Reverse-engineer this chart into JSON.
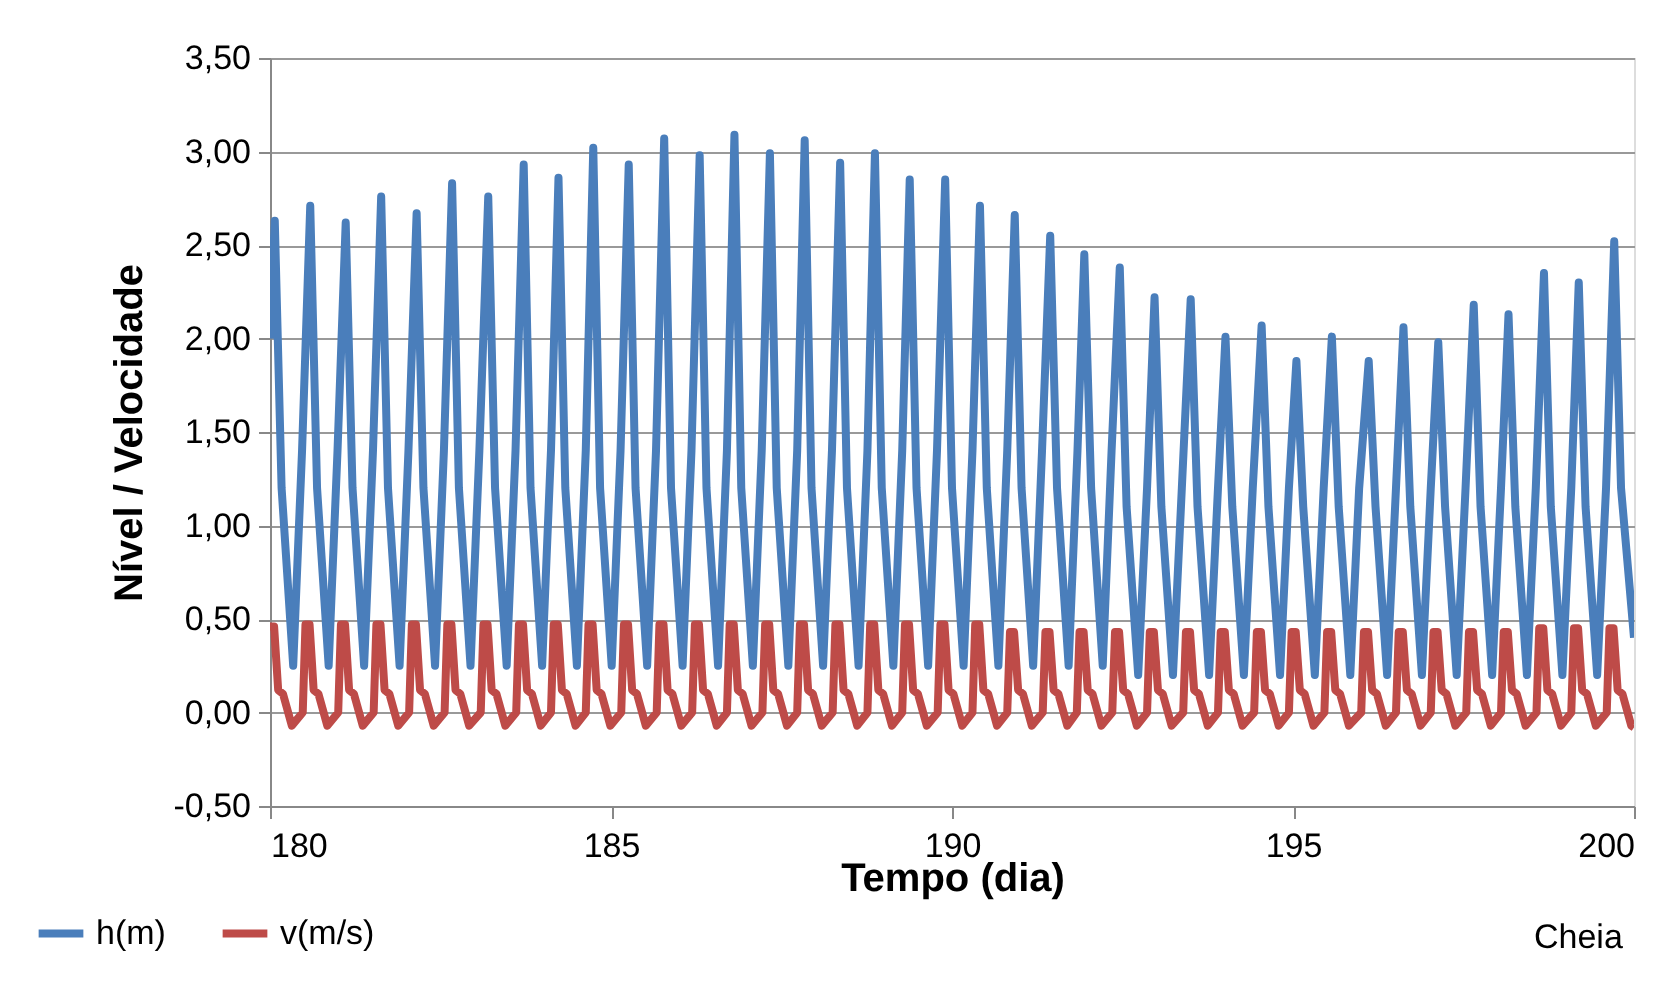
{
  "chart_data": {
    "type": "line",
    "xlabel": "Tempo (dia)",
    "ylabel": "Nível / Velocidade",
    "xlim": [
      180,
      200
    ],
    "xticks": [
      180,
      185,
      190,
      195,
      200
    ],
    "ylim": [
      -0.5,
      3.5
    ],
    "yticks": [
      {
        "value": -0.5,
        "label": "-0,50"
      },
      {
        "value": 0,
        "label": "0,00"
      },
      {
        "value": 0.5,
        "label": "0,50"
      },
      {
        "value": 1,
        "label": "1,00"
      },
      {
        "value": 1.5,
        "label": "1,50"
      },
      {
        "value": 2,
        "label": "2,00"
      },
      {
        "value": 2.5,
        "label": "2,50"
      },
      {
        "value": 3,
        "label": "3,00"
      },
      {
        "value": 3.5,
        "label": "3,50"
      }
    ],
    "grid": "y",
    "legend": "bottom",
    "line_style": "solid",
    "annotations": [
      "Cheia"
    ],
    "series": [
      {
        "name": "h(m)",
        "color": "#4a7ebb",
        "x": [
          180.0,
          180.07,
          180.17,
          180.34,
          180.47,
          180.59,
          180.69,
          180.86,
          180.99,
          181.11,
          181.21,
          181.38,
          181.51,
          181.63,
          181.73,
          181.9,
          182.03,
          182.15,
          182.25,
          182.42,
          182.55,
          182.67,
          182.77,
          182.94,
          183.07,
          183.2,
          183.3,
          183.47,
          183.6,
          183.72,
          183.82,
          183.99,
          184.12,
          184.23,
          184.33,
          184.5,
          184.63,
          184.74,
          184.84,
          185.01,
          185.14,
          185.26,
          185.36,
          185.53,
          185.66,
          185.78,
          185.88,
          186.05,
          186.18,
          186.3,
          186.4,
          186.57,
          186.7,
          186.81,
          186.91,
          187.08,
          187.21,
          187.33,
          187.43,
          187.6,
          187.73,
          187.84,
          187.94,
          188.11,
          188.24,
          188.36,
          188.46,
          188.63,
          188.76,
          188.87,
          188.97,
          189.14,
          189.27,
          189.38,
          189.48,
          189.65,
          189.78,
          189.9,
          190.0,
          190.17,
          190.3,
          190.41,
          190.51,
          190.68,
          190.81,
          190.92,
          191.02,
          191.19,
          191.32,
          191.44,
          191.54,
          191.71,
          191.84,
          191.94,
          192.04,
          192.21,
          192.34,
          192.46,
          192.56,
          192.73,
          192.86,
          192.97,
          193.07,
          193.24,
          193.37,
          193.5,
          193.6,
          193.77,
          193.9,
          194.01,
          194.11,
          194.28,
          194.41,
          194.54,
          194.64,
          194.81,
          194.94,
          195.05,
          195.15,
          195.32,
          195.45,
          195.57,
          195.67,
          195.84,
          195.97,
          196.11,
          196.21,
          196.38,
          196.51,
          196.62,
          196.72,
          196.89,
          197.02,
          197.13,
          197.23,
          197.4,
          197.53,
          197.65,
          197.75,
          197.92,
          198.05,
          198.16,
          198.26,
          198.43,
          198.56,
          198.68,
          198.78,
          198.95,
          199.08,
          199.19,
          199.29,
          199.46,
          199.59,
          199.71,
          199.81,
          200.0
        ],
        "values": [
          2.0,
          2.63,
          1.2,
          0.25,
          1.4,
          2.71,
          1.2,
          0.25,
          1.4,
          2.62,
          1.2,
          0.25,
          1.4,
          2.76,
          1.2,
          0.25,
          1.4,
          2.67,
          1.2,
          0.25,
          1.4,
          2.83,
          1.2,
          0.25,
          1.4,
          2.76,
          1.2,
          0.25,
          1.4,
          2.93,
          1.2,
          0.25,
          1.4,
          2.86,
          1.2,
          0.25,
          1.4,
          3.02,
          1.2,
          0.25,
          1.4,
          2.93,
          1.2,
          0.25,
          1.4,
          3.07,
          1.2,
          0.25,
          1.4,
          2.98,
          1.2,
          0.25,
          1.4,
          3.09,
          1.2,
          0.25,
          1.4,
          2.99,
          1.2,
          0.25,
          1.4,
          3.06,
          1.2,
          0.25,
          1.4,
          2.94,
          1.2,
          0.25,
          1.4,
          2.99,
          1.2,
          0.25,
          1.4,
          2.85,
          1.2,
          0.25,
          1.4,
          2.85,
          1.2,
          0.25,
          1.4,
          2.71,
          1.2,
          0.25,
          1.4,
          2.66,
          1.2,
          0.25,
          1.4,
          2.55,
          1.2,
          0.25,
          1.4,
          2.45,
          1.2,
          0.25,
          1.4,
          2.38,
          1.1,
          0.2,
          1.2,
          2.22,
          1.1,
          0.2,
          1.2,
          2.21,
          1.1,
          0.2,
          1.2,
          2.01,
          1.1,
          0.2,
          1.2,
          2.07,
          1.1,
          0.2,
          1.2,
          1.88,
          1.1,
          0.2,
          1.2,
          2.01,
          1.1,
          0.2,
          1.2,
          1.88,
          1.1,
          0.2,
          1.2,
          2.06,
          1.1,
          0.2,
          1.2,
          1.98,
          1.1,
          0.2,
          1.2,
          2.18,
          1.1,
          0.2,
          1.2,
          2.13,
          1.1,
          0.2,
          1.2,
          2.35,
          1.1,
          0.2,
          1.2,
          2.3,
          1.1,
          0.2,
          1.2,
          2.52,
          1.2,
          0.4
        ]
      },
      {
        "name": "v(m/s)",
        "color": "#be4b48",
        "x": [
          180.0,
          180.06,
          180.12,
          180.19,
          180.32,
          180.48,
          180.52,
          180.58,
          180.64,
          180.71,
          180.84,
          181.0,
          181.04,
          181.1,
          181.16,
          181.23,
          181.36,
          181.52,
          181.56,
          181.62,
          181.68,
          181.75,
          181.88,
          182.04,
          182.08,
          182.14,
          182.2,
          182.27,
          182.4,
          182.56,
          182.6,
          182.66,
          182.72,
          182.79,
          182.92,
          183.09,
          183.13,
          183.19,
          183.25,
          183.32,
          183.45,
          183.61,
          183.65,
          183.71,
          183.77,
          183.84,
          183.97,
          184.12,
          184.16,
          184.22,
          184.28,
          184.35,
          184.48,
          184.63,
          184.67,
          184.73,
          184.79,
          184.86,
          184.99,
          185.15,
          185.19,
          185.25,
          185.31,
          185.38,
          185.51,
          185.67,
          185.71,
          185.77,
          185.83,
          185.9,
          186.03,
          186.19,
          186.23,
          186.29,
          186.35,
          186.42,
          186.55,
          186.7,
          186.74,
          186.8,
          186.86,
          186.93,
          187.06,
          187.22,
          187.26,
          187.32,
          187.38,
          187.45,
          187.58,
          187.73,
          187.77,
          187.83,
          187.89,
          187.96,
          188.09,
          188.25,
          188.29,
          188.35,
          188.41,
          188.48,
          188.61,
          188.76,
          188.8,
          188.86,
          188.92,
          188.99,
          189.12,
          189.27,
          189.31,
          189.37,
          189.43,
          189.5,
          189.63,
          189.79,
          189.83,
          189.89,
          189.95,
          190.02,
          190.15,
          190.3,
          190.34,
          190.4,
          190.46,
          190.53,
          190.66,
          190.81,
          190.85,
          190.91,
          190.97,
          191.04,
          191.17,
          191.33,
          191.37,
          191.43,
          191.49,
          191.56,
          191.69,
          191.83,
          191.87,
          191.93,
          191.99,
          192.06,
          192.19,
          192.35,
          192.39,
          192.45,
          192.51,
          192.58,
          192.71,
          192.86,
          192.9,
          192.96,
          193.02,
          193.09,
          193.22,
          193.39,
          193.43,
          193.49,
          193.55,
          193.62,
          193.75,
          193.9,
          193.94,
          194.0,
          194.06,
          194.13,
          194.26,
          194.43,
          194.47,
          194.53,
          194.59,
          194.66,
          194.79,
          194.94,
          194.98,
          195.04,
          195.1,
          195.17,
          195.3,
          195.46,
          195.5,
          195.56,
          195.62,
          195.69,
          195.82,
          196.0,
          196.04,
          196.1,
          196.16,
          196.23,
          196.36,
          196.51,
          196.55,
          196.61,
          196.67,
          196.74,
          196.87,
          197.02,
          197.06,
          197.12,
          197.18,
          197.25,
          197.38,
          197.54,
          197.58,
          197.64,
          197.7,
          197.77,
          197.9,
          198.05,
          198.09,
          198.15,
          198.21,
          198.28,
          198.41,
          198.57,
          198.61,
          198.67,
          198.73,
          198.8,
          198.93,
          199.08,
          199.12,
          199.18,
          199.24,
          199.31,
          199.44,
          199.6,
          199.64,
          199.7,
          199.76,
          199.83,
          199.96,
          200.0
        ],
        "values": [
          0.46,
          0.46,
          0.12,
          0.1,
          -0.07,
          0.0,
          0.47,
          0.47,
          0.12,
          0.1,
          -0.07,
          0.0,
          0.47,
          0.47,
          0.12,
          0.1,
          -0.07,
          0.0,
          0.47,
          0.47,
          0.12,
          0.1,
          -0.07,
          0.0,
          0.47,
          0.47,
          0.12,
          0.1,
          -0.07,
          0.0,
          0.47,
          0.47,
          0.12,
          0.1,
          -0.07,
          0.0,
          0.47,
          0.47,
          0.12,
          0.1,
          -0.07,
          0.0,
          0.47,
          0.47,
          0.12,
          0.1,
          -0.07,
          0.0,
          0.47,
          0.47,
          0.12,
          0.1,
          -0.07,
          0.0,
          0.47,
          0.47,
          0.12,
          0.1,
          -0.07,
          0.0,
          0.47,
          0.47,
          0.12,
          0.1,
          -0.07,
          0.0,
          0.47,
          0.47,
          0.12,
          0.1,
          -0.07,
          0.0,
          0.47,
          0.47,
          0.12,
          0.1,
          -0.07,
          0.0,
          0.47,
          0.47,
          0.12,
          0.1,
          -0.07,
          0.0,
          0.47,
          0.47,
          0.12,
          0.1,
          -0.07,
          0.0,
          0.47,
          0.47,
          0.12,
          0.1,
          -0.07,
          0.0,
          0.47,
          0.47,
          0.12,
          0.1,
          -0.07,
          0.0,
          0.47,
          0.47,
          0.12,
          0.1,
          -0.07,
          0.0,
          0.47,
          0.47,
          0.12,
          0.1,
          -0.07,
          0.0,
          0.47,
          0.47,
          0.12,
          0.1,
          -0.07,
          0.0,
          0.47,
          0.47,
          0.12,
          0.1,
          -0.07,
          0.0,
          0.43,
          0.43,
          0.12,
          0.1,
          -0.07,
          0.0,
          0.43,
          0.43,
          0.12,
          0.1,
          -0.07,
          0.0,
          0.43,
          0.43,
          0.12,
          0.1,
          -0.07,
          0.0,
          0.43,
          0.43,
          0.12,
          0.1,
          -0.07,
          0.0,
          0.43,
          0.43,
          0.12,
          0.1,
          -0.07,
          0.0,
          0.43,
          0.43,
          0.12,
          0.1,
          -0.07,
          0.0,
          0.43,
          0.43,
          0.12,
          0.1,
          -0.07,
          0.0,
          0.43,
          0.43,
          0.12,
          0.1,
          -0.07,
          0.0,
          0.43,
          0.43,
          0.12,
          0.1,
          -0.07,
          0.0,
          0.43,
          0.43,
          0.12,
          0.1,
          -0.07,
          0.0,
          0.43,
          0.43,
          0.12,
          0.1,
          -0.07,
          0.0,
          0.43,
          0.43,
          0.12,
          0.1,
          -0.07,
          0.0,
          0.43,
          0.43,
          0.12,
          0.1,
          -0.07,
          0.0,
          0.43,
          0.43,
          0.12,
          0.1,
          -0.07,
          0.0,
          0.43,
          0.43,
          0.12,
          0.1,
          -0.07,
          0.0,
          0.45,
          0.45,
          0.12,
          0.1,
          -0.07,
          0.0,
          0.45,
          0.45,
          0.12,
          0.1,
          -0.07,
          0.0,
          0.45,
          0.45,
          0.12,
          0.1,
          -0.07,
          -0.08
        ]
      }
    ]
  }
}
